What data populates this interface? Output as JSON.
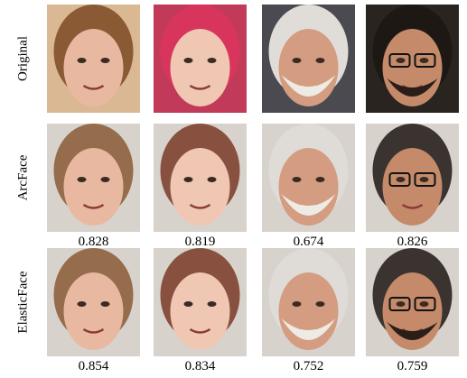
{
  "rows": [
    {
      "label": "Original"
    },
    {
      "label": "ArcFace",
      "scores": [
        0.828,
        0.819,
        0.674,
        0.826
      ]
    },
    {
      "label": "ElasticFace",
      "scores": [
        0.854,
        0.834,
        0.752,
        0.759
      ]
    }
  ]
}
